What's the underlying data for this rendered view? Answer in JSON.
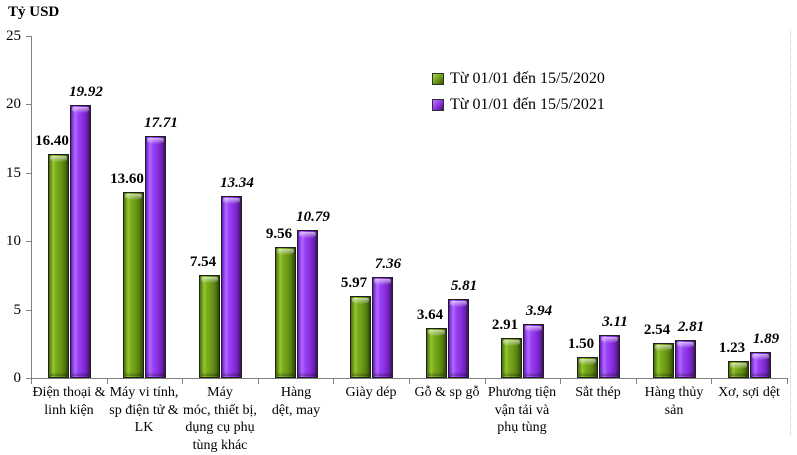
{
  "title": "Tỷ USD",
  "legend": {
    "items": [
      {
        "label": "Từ 01/01 đến 15/5/2020",
        "color": "#6b9a15"
      },
      {
        "label": "Từ 01/01 đến 15/5/2021",
        "color": "#8c2fe4"
      }
    ]
  },
  "chart_data": {
    "type": "bar",
    "title": "Tỷ USD",
    "ylabel": "Tỷ USD",
    "xlabel": "",
    "ylim": [
      0,
      25
    ],
    "yticks": [
      0,
      5,
      10,
      15,
      20,
      25
    ],
    "grid": false,
    "legend_position": "top-right",
    "value_label_decimals": 2,
    "categories": [
      "Điện thoại & linh kiện",
      "Máy vi tính, sp điện tử & LK",
      "Máy móc, thiết bị, dụng cụ phụ tùng khác",
      "Hàng dệt, may",
      "Giày dép",
      "Gỗ & sp gỗ",
      "Phương tiện vận tải và phụ tùng",
      "Sắt thép",
      "Hàng thủy sản",
      "Xơ, sợi dệt"
    ],
    "category_display_lines": [
      "Điện thoại &\nlinh kiện",
      "Máy vi tính,\nsp điện tử &\nLK",
      "Máy\nmóc, thiết bị,\ndụng cụ phụ\ntùng khác",
      "Hàng\ndệt, may",
      "Giày dép",
      "Gỗ & sp gỗ",
      "Phương tiện\nvận tải và\nphụ tùng",
      "Sắt thép",
      "Hàng thủy\nsản",
      "Xơ, sợi dệt"
    ],
    "series": [
      {
        "name": "Từ 01/01 đến 15/5/2020",
        "color": "#6b9a15",
        "values": [
          16.4,
          13.6,
          7.54,
          9.56,
          5.97,
          3.64,
          2.91,
          1.5,
          2.54,
          1.23
        ]
      },
      {
        "name": "Từ 01/01 đến 15/5/2021",
        "color": "#8c2fe4",
        "values": [
          19.92,
          17.71,
          13.34,
          10.79,
          7.36,
          5.81,
          3.94,
          3.11,
          2.81,
          1.89
        ]
      }
    ]
  }
}
